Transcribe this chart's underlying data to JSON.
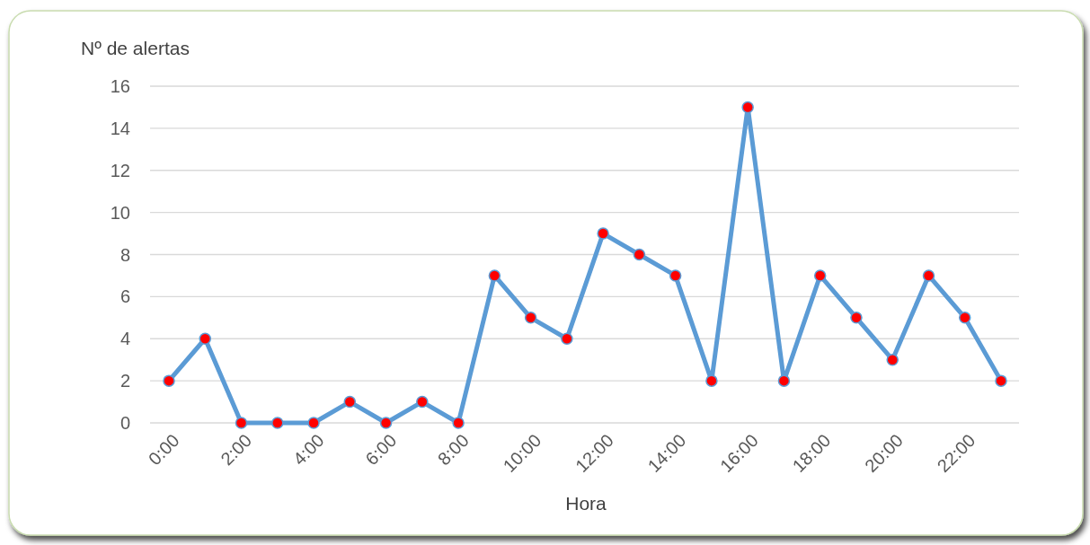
{
  "chart_data": {
    "type": "line",
    "xlabel": "Hora",
    "ylabel": "Nº de alertas",
    "categories": [
      "0:00",
      null,
      "2:00",
      null,
      "4:00",
      null,
      "6:00",
      null,
      "8:00",
      null,
      "10:00",
      null,
      "12:00",
      null,
      "14:00",
      null,
      "16:00",
      null,
      "18:00",
      null,
      "20:00",
      null,
      "22:00",
      null
    ],
    "series": [
      {
        "color": "#5b9bd5",
        "values": [
          2,
          4,
          0,
          0,
          0,
          1,
          0,
          1,
          0,
          7,
          5,
          4,
          9,
          8,
          7,
          2,
          15,
          2,
          7,
          5,
          3,
          7,
          5,
          2
        ]
      }
    ],
    "ylim": [
      0,
      16
    ],
    "yticks": [
      0,
      2,
      4,
      6,
      8,
      10,
      12,
      14,
      16
    ],
    "grid": "y",
    "marker": "circle",
    "line_style": "solid"
  }
}
